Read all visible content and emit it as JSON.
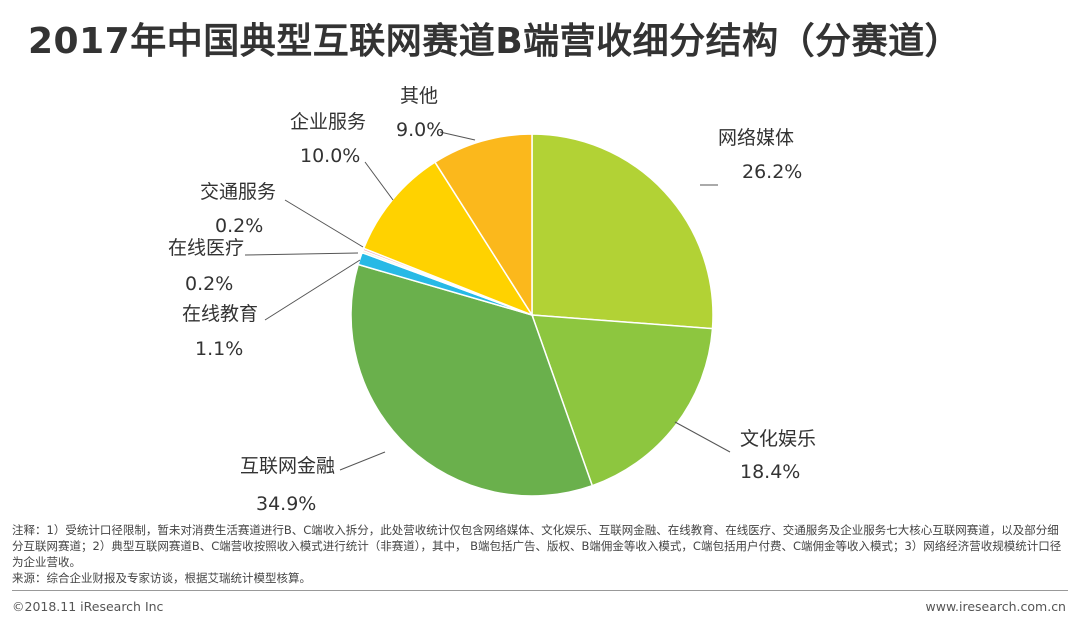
{
  "title": "2017年中国典型互联网赛道B端营收细分结构（分赛道）",
  "chart_data": {
    "type": "pie",
    "slices": [
      {
        "name": "网络媒体",
        "value": 26.2,
        "label": "26.2%",
        "color": "#b2d235"
      },
      {
        "name": "文化娱乐",
        "value": 18.4,
        "label": "18.4%",
        "color": "#8dc63f"
      },
      {
        "name": "互联网金融",
        "value": 34.9,
        "label": "34.9%",
        "color": "#6ab04c"
      },
      {
        "name": "在线教育",
        "value": 1.1,
        "label": "1.1%",
        "color": "#27b9e6"
      },
      {
        "name": "在线医疗",
        "value": 0.2,
        "label": "0.2%",
        "color": "#e9ecd0"
      },
      {
        "name": "交通服务",
        "value": 0.2,
        "label": "0.2%",
        "color": "#f2a7a7"
      },
      {
        "name": "企业服务",
        "value": 10.0,
        "label": "10.0%",
        "color": "#ffd200"
      },
      {
        "name": "其他",
        "value": 9.0,
        "label": "9.0%",
        "color": "#fbb81c"
      }
    ]
  },
  "notes": [
    "注释：1）受统计口径限制，暂未对消费生活赛道进行B、C端收入拆分，此处营收统计仅包含网络媒体、文化娱乐、互联网金融、在线教育、在线医疗、交通服务及企业服务七大核心互联网赛道，以及部分细分互联网赛道；2）典型互联网赛道B、C端营收按照收入模式进行统计（非赛道），其中， B端包括广告、版权、B端佣金等收入模式，C端包括用户付费、C端佣金等收入模式；3）网络经济营收规模统计口径为企业营收。",
    "来源：综合企业财报及专家访谈，根据艾瑞统计模型核算。"
  ],
  "footer": {
    "copyright": "©2018.11 iResearch Inc",
    "website": "www.iresearch.com.cn"
  }
}
